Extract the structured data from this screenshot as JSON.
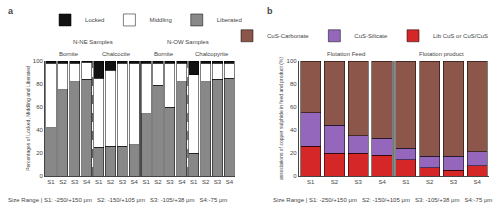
{
  "chart_data": [
    {
      "type": "bar",
      "stacked": true,
      "title": "a",
      "categories": [
        "S1",
        "S2",
        "S3",
        "S4",
        "S1",
        "S2",
        "S3",
        "S4",
        "S1",
        "S2",
        "S3",
        "S4",
        "S1",
        "S2",
        "S3",
        "S4"
      ],
      "mineral": [
        "Bornite",
        "Bornite",
        "Bornite",
        "Bornite",
        "Chalcocite",
        "Chalcocite",
        "Chalcocite",
        "Chalcocite",
        "Bornite",
        "Bornite",
        "Bornite",
        "Bornite",
        "Chalcopyrite",
        "Chalcopyrite",
        "Chalcopyrite",
        "Chalcopyrite"
      ],
      "section": [
        "N-NE Samples",
        "N-NE Samples",
        "N-NE Samples",
        "N-NE Samples",
        "N-NE Samples",
        "N-NE Samples",
        "N-NE Samples",
        "N-NE Samples",
        "N-OW Samples",
        "N-OW Samples",
        "N-OW Samples",
        "N-OW Samples",
        "N-OW Samples",
        "N-OW Samples",
        "N-OW Samples",
        "N-OW Samples"
      ],
      "series": [
        {
          "name": "Liberated",
          "color": "#888888",
          "values": [
            42,
            75,
            82,
            84,
            25,
            26,
            26,
            27,
            54,
            79,
            60,
            82,
            20,
            82,
            84,
            85
          ]
        },
        {
          "name": "Middling",
          "color": "#ffffff",
          "values": [
            56,
            23,
            16,
            15,
            60,
            66,
            72,
            71,
            44,
            19,
            38,
            16,
            68,
            16,
            14,
            13
          ]
        },
        {
          "name": "Locked",
          "color": "#111111",
          "values": [
            2,
            2,
            2,
            1,
            15,
            8,
            2,
            2,
            2,
            2,
            2,
            2,
            12,
            2,
            2,
            2
          ]
        }
      ],
      "ylabel": "Percentages of Locked, Middling and Liberated",
      "ylim": [
        0,
        100
      ],
      "yticks": [
        0,
        20,
        40,
        60,
        80,
        100
      ],
      "grid": false,
      "note": "Size Range | S1: -250/+150 μm   S2: -150/+105 μm   S3: -105/+38 μm   S4:-75 μm"
    },
    {
      "type": "bar",
      "stacked": true,
      "title": "b",
      "categories": [
        "S1",
        "S2",
        "S3",
        "S4",
        "S1",
        "S2",
        "S3",
        "S4"
      ],
      "section": [
        "Flotation Feed",
        "Flotation Feed",
        "Flotation Feed",
        "Flotation Feed",
        "Flotation product",
        "Flotation product",
        "Flotation product",
        "Flotation product"
      ],
      "series": [
        {
          "name": "Lib CuS or CuS/CuS",
          "values": [
            26,
            20,
            20,
            18,
            14,
            7,
            5,
            9
          ]
        },
        {
          "name": "CuS-Silicate",
          "values": [
            29,
            24,
            15,
            15,
            10,
            10,
            12,
            12
          ]
        },
        {
          "name": "CuS-Carbonate",
          "values": [
            45,
            56,
            65,
            67,
            76,
            83,
            83,
            79
          ]
        }
      ],
      "ylabel": "associations of copper sulphide in feed and product (%)",
      "ylim": [
        0,
        100
      ],
      "yticks": [
        0,
        20,
        40,
        60,
        80,
        100
      ],
      "grid": false,
      "note": "Size Range | S1: -250/+150 μm   S2: -150/+105 μm   S3: -105/+38 μm   S4:-75 μm"
    }
  ]
}
